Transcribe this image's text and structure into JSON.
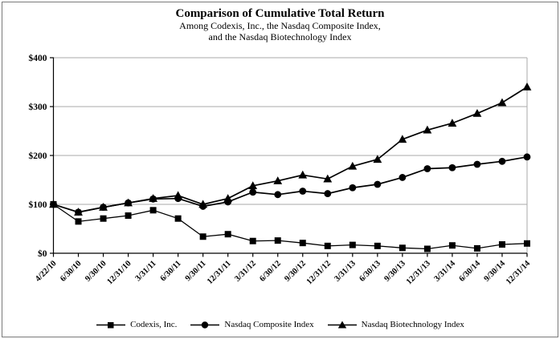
{
  "figure": {
    "title": "Comparison of Cumulative Total Return",
    "subtitle_line1": "Among Codexis, Inc., the Nasdaq Composite Index,",
    "subtitle_line2": "and the Nasdaq Biotechnology Index"
  },
  "chart_data": {
    "type": "line",
    "title": "Comparison of Cumulative Total Return",
    "subtitle": "Among Codexis, Inc., the Nasdaq Composite Index, and the Nasdaq Biotechnology Index",
    "categories": [
      "4/22/10",
      "6/30/10",
      "9/30/10",
      "12/31/10",
      "3/31/11",
      "6/30/11",
      "9/30/11",
      "12/31/11",
      "3/31/12",
      "6/30/12",
      "9/30/12",
      "12/31/12",
      "3/31/13",
      "6/30/13",
      "9/30/13",
      "12/31/13",
      "3/31/14",
      "6/30/14",
      "9/30/14",
      "12/31/14"
    ],
    "series": [
      {
        "name": "Codexis, Inc.",
        "marker": "square",
        "marker_icon": "square-marker-icon",
        "values": [
          100,
          65,
          71,
          77,
          88,
          71,
          34,
          39,
          25,
          26,
          21,
          15,
          17,
          15,
          11,
          9,
          16,
          10,
          18,
          20
        ]
      },
      {
        "name": "Nasdaq Composite Index",
        "marker": "circle",
        "marker_icon": "circle-marker-icon",
        "values": [
          100,
          84,
          94,
          103,
          111,
          112,
          96,
          105,
          125,
          120,
          127,
          122,
          134,
          141,
          155,
          173,
          175,
          182,
          188,
          197
        ]
      },
      {
        "name": "Nasdaq Biotechnology Index",
        "marker": "triangle",
        "marker_icon": "triangle-marker-icon",
        "values": [
          100,
          84,
          94,
          103,
          112,
          118,
          100,
          112,
          138,
          148,
          160,
          152,
          178,
          192,
          233,
          252,
          266,
          286,
          308,
          340
        ]
      }
    ],
    "ylim": [
      0,
      400
    ],
    "y_ticks": [
      0,
      100,
      200,
      300,
      400
    ],
    "y_tick_labels": [
      "$0",
      "$100",
      "$200",
      "$300",
      "$400"
    ],
    "xlabel": "",
    "ylabel": "",
    "grid": "horizontal",
    "legend_position": "bottom",
    "colors": {
      "line": "#000000",
      "grid": "#aaaaaa",
      "axis": "#000000",
      "background": "#ffffff"
    }
  }
}
